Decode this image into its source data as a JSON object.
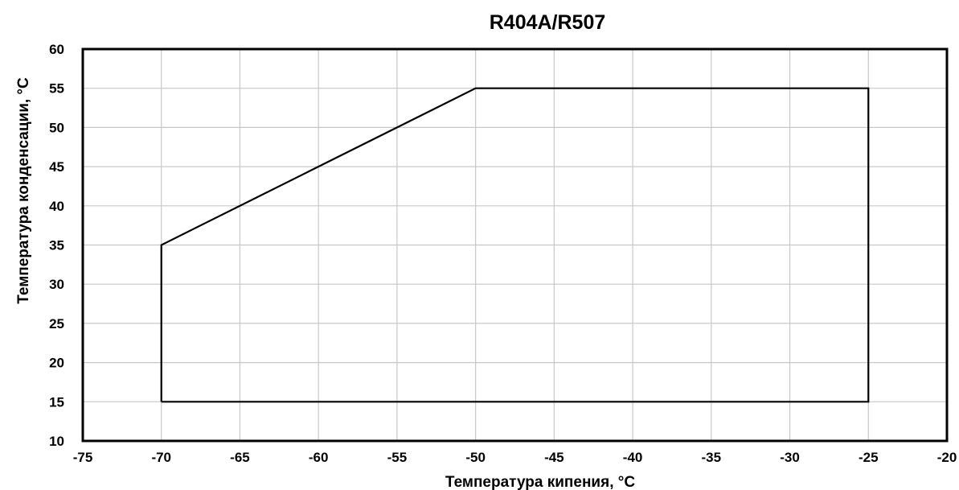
{
  "chart_data": {
    "type": "line",
    "title": "R404A/R507",
    "xlabel": "Температура кипения, °C",
    "ylabel": "Температура конденсации, °С",
    "xlim": [
      -75,
      -20
    ],
    "ylim": [
      10,
      60
    ],
    "x_ticks": [
      -75,
      -70,
      -65,
      -60,
      -55,
      -50,
      -45,
      -40,
      -35,
      -30,
      -25,
      -20
    ],
    "y_ticks": [
      10,
      15,
      20,
      25,
      30,
      35,
      40,
      45,
      50,
      55,
      60
    ],
    "grid": true,
    "series": [
      {
        "points": [
          {
            "x": -70,
            "y": 15
          },
          {
            "x": -70,
            "y": 35
          },
          {
            "x": -50,
            "y": 55
          },
          {
            "x": -25,
            "y": 55
          },
          {
            "x": -25,
            "y": 15
          },
          {
            "x": -70,
            "y": 15
          }
        ]
      }
    ]
  }
}
